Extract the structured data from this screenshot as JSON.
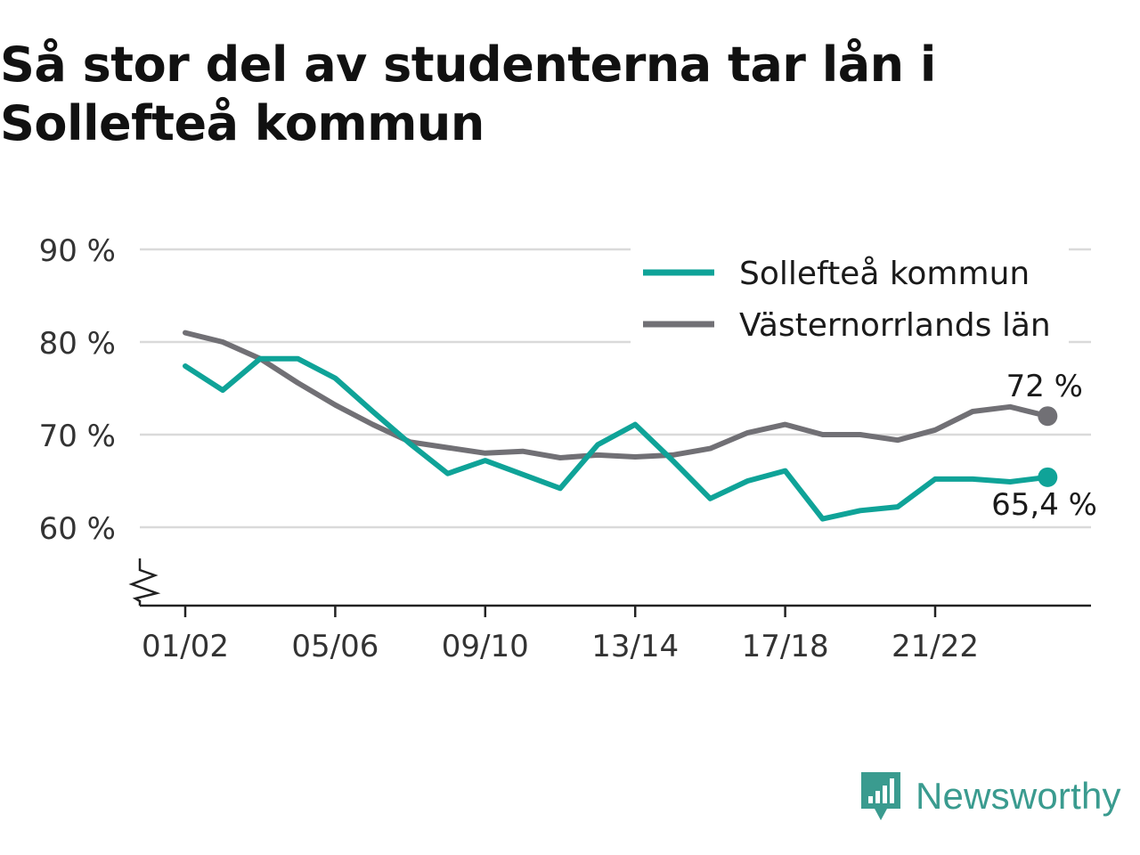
{
  "title": "Så stor del av studenterna tar lån i Sollefteå kommun",
  "brand": {
    "name": "Newsworthy",
    "icon": "newsworthy-logo-icon",
    "color": "#3a9b8f"
  },
  "chart_data": {
    "type": "line",
    "title": "Så stor del av studenterna tar lån i Sollefteå kommun",
    "x": [
      "01/02",
      "02/03",
      "03/04",
      "04/05",
      "05/06",
      "06/07",
      "07/08",
      "08/09",
      "09/10",
      "10/11",
      "11/12",
      "12/13",
      "13/14",
      "14/15",
      "15/16",
      "16/17",
      "17/18",
      "18/19",
      "19/20",
      "20/21",
      "21/22",
      "22/23",
      "23/24",
      "24/25"
    ],
    "x_tick_labels": [
      "01/02",
      "05/06",
      "09/10",
      "13/14",
      "17/18",
      "21/22"
    ],
    "y_tick_labels": [
      "90 %",
      "80 %",
      "70 %",
      "60 %"
    ],
    "y_ticks": [
      90,
      80,
      70,
      60
    ],
    "ylim": [
      52,
      90
    ],
    "y_axis_break": true,
    "grid": true,
    "legend": "top-right",
    "series": [
      {
        "name": "Sollefteå kommun",
        "color": "#0fa398",
        "values": [
          77.4,
          74.8,
          78.2,
          78.2,
          76.1,
          72.5,
          69.0,
          65.8,
          67.2,
          65.7,
          64.2,
          68.9,
          71.1,
          67.2,
          63.1,
          65.0,
          66.1,
          60.9,
          61.8,
          62.2,
          65.2,
          65.2,
          64.9,
          65.4
        ],
        "end_label": "65,4 %"
      },
      {
        "name": "Västernorrlands län",
        "color": "#717075",
        "values": [
          81.0,
          80.0,
          78.2,
          75.6,
          73.2,
          71.1,
          69.2,
          68.6,
          68.0,
          68.2,
          67.5,
          67.8,
          67.6,
          67.8,
          68.5,
          70.2,
          71.1,
          70.0,
          70.0,
          69.4,
          70.5,
          72.5,
          73.0,
          72.0
        ],
        "end_label": "72 %"
      }
    ]
  }
}
